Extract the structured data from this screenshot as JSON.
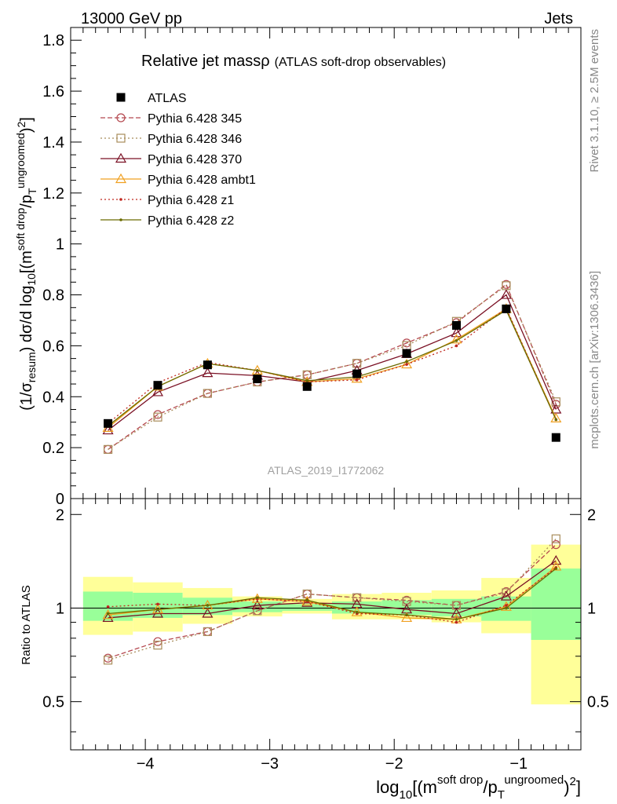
{
  "header": {
    "left": "13000 GeV pp",
    "right": "Jets"
  },
  "side_labels": {
    "rivet": "Rivet 3.1.10, ≥ 2.5M events",
    "mcplots": "mcplots.cern.ch [arXiv:1306.3436]"
  },
  "chart_data": {
    "type": "line",
    "title": "Relative jet massρ",
    "subtitle": "(ATLAS soft-drop observables)",
    "watermark": "ATLAS_2019_I1772062",
    "xlabel": "log10[(m^{soft drop}/p_T^{ungroomed})^2]",
    "ylabel": "(1/σ_resum) dσ/d log10[(m^{soft drop}/p_T^{ungroomed})^2]",
    "ratio_ylabel": "Ratio to ATLAS",
    "xlim": [
      -4.6,
      -0.5
    ],
    "ylim": [
      0,
      1.85
    ],
    "ratio_ylim": [
      0.35,
      2.25
    ],
    "x_ticks": [
      -4,
      -3,
      -2,
      -1
    ],
    "y_ticks": [
      0,
      0.2,
      0.4,
      0.6,
      0.8,
      1,
      1.2,
      1.4,
      1.6,
      1.8
    ],
    "ratio_ticks": [
      0.5,
      1,
      2
    ],
    "legend_position": "top-left",
    "x": [
      -4.3,
      -3.9,
      -3.5,
      -3.1,
      -2.7,
      -2.3,
      -1.9,
      -1.5,
      -1.1,
      -0.7
    ],
    "bin_edges": [
      -4.5,
      -4.1,
      -3.7,
      -3.3,
      -2.9,
      -2.5,
      -2.1,
      -1.7,
      -1.3,
      -0.9,
      -0.5
    ],
    "band_inner": [
      [
        0.91,
        1.13
      ],
      [
        0.93,
        1.12
      ],
      [
        0.95,
        1.08
      ],
      [
        0.97,
        1.05
      ],
      [
        0.98,
        1.03
      ],
      [
        0.96,
        1.05
      ],
      [
        0.95,
        1.06
      ],
      [
        0.94,
        1.07
      ],
      [
        0.91,
        1.09
      ],
      [
        0.79,
        1.34
      ]
    ],
    "band_outer": [
      [
        0.82,
        1.26
      ],
      [
        0.84,
        1.21
      ],
      [
        0.89,
        1.16
      ],
      [
        0.94,
        1.09
      ],
      [
        0.96,
        1.07
      ],
      [
        0.92,
        1.11
      ],
      [
        0.92,
        1.12
      ],
      [
        0.9,
        1.14
      ],
      [
        0.83,
        1.25
      ],
      [
        0.49,
        1.6
      ]
    ],
    "data": {
      "name": "ATLAS",
      "color": "#000000",
      "values": [
        0.295,
        0.445,
        0.525,
        0.47,
        0.44,
        0.49,
        0.57,
        0.68,
        0.745,
        0.24
      ]
    },
    "series": [
      {
        "name": "Pythia 6.428 345",
        "color": "#b5484f",
        "dash": "6,3",
        "marker": "circle",
        "values": [
          0.193,
          0.33,
          0.413,
          0.458,
          0.486,
          0.531,
          0.611,
          0.691,
          0.841,
          0.37
        ],
        "ratio": [
          0.69,
          0.78,
          0.84,
          0.98,
          1.11,
          1.08,
          1.06,
          1.02,
          1.13,
          1.6
        ]
      },
      {
        "name": "Pythia 6.428 346",
        "color": "#a88c5a",
        "dash": "2,3",
        "marker": "square",
        "values": [
          0.193,
          0.32,
          0.413,
          0.458,
          0.486,
          0.531,
          0.601,
          0.696,
          0.836,
          0.38
        ],
        "ratio": [
          0.68,
          0.76,
          0.84,
          0.98,
          1.11,
          1.08,
          1.05,
          1.02,
          1.12,
          1.67
        ]
      },
      {
        "name": "Pythia 6.428 370",
        "color": "#7a1024",
        "dash": "",
        "marker": "triangle",
        "values": [
          0.268,
          0.418,
          0.493,
          0.483,
          0.458,
          0.503,
          0.568,
          0.65,
          0.8,
          0.35
        ],
        "ratio": [
          0.93,
          0.96,
          0.96,
          1.02,
          1.04,
          1.03,
          0.99,
          0.96,
          1.09,
          1.42
        ]
      },
      {
        "name": "Pythia 6.428 ambt1",
        "color": "#f0a020",
        "dash": "",
        "marker": "triangle",
        "values": [
          0.278,
          0.44,
          0.53,
          0.503,
          0.458,
          0.471,
          0.527,
          0.625,
          0.745,
          0.315
        ],
        "ratio": [
          0.95,
          0.99,
          1.02,
          1.07,
          1.05,
          0.97,
          0.93,
          0.92,
          1.01,
          1.36
        ]
      },
      {
        "name": "Pythia 6.428 z1",
        "color": "#c0281f",
        "dash": "2,3",
        "marker": "dot",
        "values": [
          0.295,
          0.455,
          0.535,
          0.503,
          0.458,
          0.466,
          0.527,
          0.6,
          0.748,
          0.31
        ],
        "ratio": [
          1.01,
          1.03,
          1.02,
          1.07,
          1.05,
          0.96,
          0.95,
          0.9,
          1.02,
          1.35
        ]
      },
      {
        "name": "Pythia 6.428 z2",
        "color": "#6b6b00",
        "dash": "",
        "marker": "dot",
        "values": [
          0.285,
          0.44,
          0.53,
          0.503,
          0.463,
          0.478,
          0.538,
          0.62,
          0.74,
          0.31
        ],
        "ratio": [
          0.96,
          0.99,
          1.02,
          1.08,
          1.06,
          0.97,
          0.95,
          0.92,
          1.0,
          1.34
        ]
      }
    ]
  }
}
